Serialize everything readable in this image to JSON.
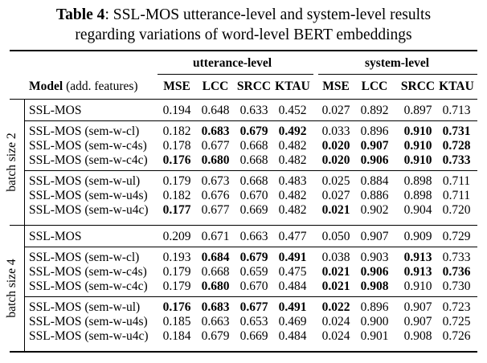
{
  "caption": {
    "label": "Table 4",
    "text1": ": SSL-MOS utterance-level and system-level results",
    "text2": "regarding variations of word-level BERT embeddings"
  },
  "table": {
    "group_headers": [
      "utterance-level",
      "system-level"
    ],
    "model_header": "Model",
    "model_header_note": "(add. features)",
    "columns": [
      "MSE",
      "LCC",
      "SRCC",
      "KTAU",
      "MSE",
      "LCC",
      "SRCC",
      "KTAU"
    ],
    "blocks": [
      {
        "label": "batch size 2",
        "groups": [
          [
            {
              "model": "SSL-MOS",
              "values": [
                "0.194",
                "0.648",
                "0.633",
                "0.452",
                "0.027",
                "0.892",
                "0.897",
                "0.713"
              ],
              "bold": [
                false,
                false,
                false,
                false,
                false,
                false,
                false,
                false
              ]
            }
          ],
          [
            {
              "model": "SSL-MOS (sem-w-cl)",
              "values": [
                "0.182",
                "0.683",
                "0.679",
                "0.492",
                "0.033",
                "0.896",
                "0.910",
                "0.731"
              ],
              "bold": [
                false,
                true,
                true,
                true,
                false,
                false,
                true,
                true
              ]
            },
            {
              "model": "SSL-MOS (sem-w-c4s)",
              "values": [
                "0.178",
                "0.677",
                "0.668",
                "0.482",
                "0.020",
                "0.907",
                "0.910",
                "0.728"
              ],
              "bold": [
                false,
                false,
                false,
                false,
                true,
                true,
                true,
                true
              ]
            },
            {
              "model": "SSL-MOS (sem-w-c4c)",
              "values": [
                "0.176",
                "0.680",
                "0.668",
                "0.482",
                "0.020",
                "0.906",
                "0.910",
                "0.733"
              ],
              "bold": [
                true,
                true,
                false,
                false,
                true,
                true,
                true,
                true
              ]
            }
          ],
          [
            {
              "model": "SSL-MOS (sem-w-ul)",
              "values": [
                "0.179",
                "0.673",
                "0.668",
                "0.483",
                "0.025",
                "0.884",
                "0.898",
                "0.711"
              ],
              "bold": [
                false,
                false,
                false,
                false,
                false,
                false,
                false,
                false
              ]
            },
            {
              "model": "SSL-MOS (sem-w-u4s)",
              "values": [
                "0.182",
                "0.676",
                "0.670",
                "0.482",
                "0.027",
                "0.886",
                "0.898",
                "0.711"
              ],
              "bold": [
                false,
                false,
                false,
                false,
                false,
                false,
                false,
                false
              ]
            },
            {
              "model": "SSL-MOS (sem-w-u4c)",
              "values": [
                "0.177",
                "0.677",
                "0.669",
                "0.482",
                "0.021",
                "0.902",
                "0.904",
                "0.720"
              ],
              "bold": [
                true,
                false,
                false,
                false,
                true,
                false,
                false,
                false
              ]
            }
          ]
        ]
      },
      {
        "label": "batch size 4",
        "groups": [
          [
            {
              "model": "SSL-MOS",
              "values": [
                "0.209",
                "0.671",
                "0.663",
                "0.477",
                "0.050",
                "0.907",
                "0.909",
                "0.729"
              ],
              "bold": [
                false,
                false,
                false,
                false,
                false,
                false,
                false,
                false
              ]
            }
          ],
          [
            {
              "model": "SSL-MOS (sem-w-cl)",
              "values": [
                "0.193",
                "0.684",
                "0.679",
                "0.491",
                "0.038",
                "0.903",
                "0.913",
                "0.733"
              ],
              "bold": [
                false,
                true,
                true,
                true,
                false,
                false,
                true,
                false
              ]
            },
            {
              "model": "SSL-MOS (sem-w-c4s)",
              "values": [
                "0.179",
                "0.668",
                "0.659",
                "0.475",
                "0.021",
                "0.906",
                "0.913",
                "0.736"
              ],
              "bold": [
                false,
                false,
                false,
                false,
                true,
                true,
                true,
                true
              ]
            },
            {
              "model": "SSL-MOS (sem-w-c4c)",
              "values": [
                "0.179",
                "0.680",
                "0.670",
                "0.484",
                "0.021",
                "0.908",
                "0.910",
                "0.730"
              ],
              "bold": [
                false,
                true,
                false,
                false,
                true,
                true,
                false,
                false
              ]
            }
          ],
          [
            {
              "model": "SSL-MOS (sem-w-ul)",
              "values": [
                "0.176",
                "0.683",
                "0.677",
                "0.491",
                "0.022",
                "0.896",
                "0.907",
                "0.723"
              ],
              "bold": [
                true,
                true,
                true,
                true,
                true,
                false,
                false,
                false
              ]
            },
            {
              "model": "SSL-MOS (sem-w-u4s)",
              "values": [
                "0.185",
                "0.663",
                "0.653",
                "0.469",
                "0.024",
                "0.900",
                "0.907",
                "0.725"
              ],
              "bold": [
                false,
                false,
                false,
                false,
                false,
                false,
                false,
                false
              ]
            },
            {
              "model": "SSL-MOS (sem-w-u4c)",
              "values": [
                "0.184",
                "0.679",
                "0.669",
                "0.484",
                "0.024",
                "0.901",
                "0.908",
                "0.726"
              ],
              "bold": [
                false,
                false,
                false,
                false,
                false,
                false,
                false,
                false
              ]
            }
          ]
        ]
      }
    ]
  }
}
